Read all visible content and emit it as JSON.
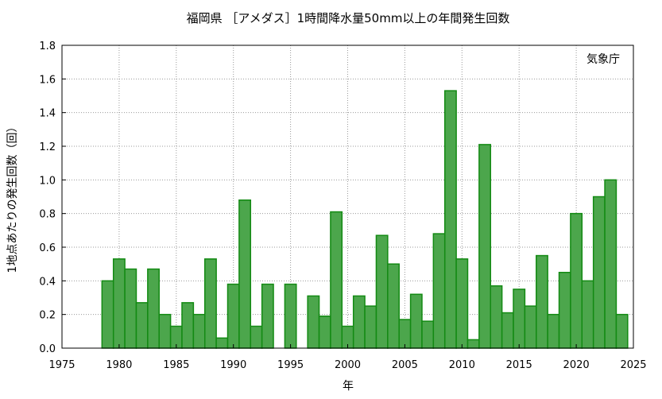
{
  "chart_data": {
    "type": "bar",
    "title": "福岡県 ［アメダス］1時間降水量50mm以上の年間発生回数",
    "xlabel": "年",
    "ylabel": "1地点あたりの発生回数（回）",
    "annotation": "気象庁",
    "xlim": [
      1975,
      2025
    ],
    "ylim": [
      0,
      1.8
    ],
    "x_ticks": [
      1975,
      1980,
      1985,
      1990,
      1995,
      2000,
      2005,
      2010,
      2015,
      2020,
      2025
    ],
    "y_ticks": [
      "0.0",
      "0.2",
      "0.4",
      "0.6",
      "0.8",
      "1.0",
      "1.2",
      "1.4",
      "1.6",
      "1.8"
    ],
    "grid": true,
    "bar_color": "#4ca64c",
    "bar_edge_color": "#138a13",
    "x": [
      1979,
      1980,
      1981,
      1982,
      1983,
      1984,
      1985,
      1986,
      1987,
      1988,
      1989,
      1990,
      1991,
      1992,
      1993,
      1994,
      1995,
      1996,
      1997,
      1998,
      1999,
      2000,
      2001,
      2002,
      2003,
      2004,
      2005,
      2006,
      2007,
      2008,
      2009,
      2010,
      2011,
      2012,
      2013,
      2014,
      2015,
      2016,
      2017,
      2018,
      2019,
      2020,
      2021,
      2022,
      2023,
      2024,
      2025
    ],
    "values": [
      0.4,
      0.53,
      0.47,
      0.27,
      0.47,
      0.2,
      0.13,
      0.27,
      0.2,
      0.53,
      0.06,
      0.38,
      0.88,
      0.13,
      0.38,
      0.0,
      0.38,
      0.0,
      0.31,
      0.19,
      0.81,
      0.13,
      0.31,
      0.25,
      0.67,
      0.5,
      0.17,
      0.32,
      0.16,
      0.68,
      1.53,
      0.53,
      0.05,
      1.21,
      0.37,
      0.21,
      0.35,
      0.25,
      0.55,
      0.2,
      0.45,
      0.8,
      0.4,
      0.9,
      1.0,
      0.2,
      0.0
    ]
  }
}
